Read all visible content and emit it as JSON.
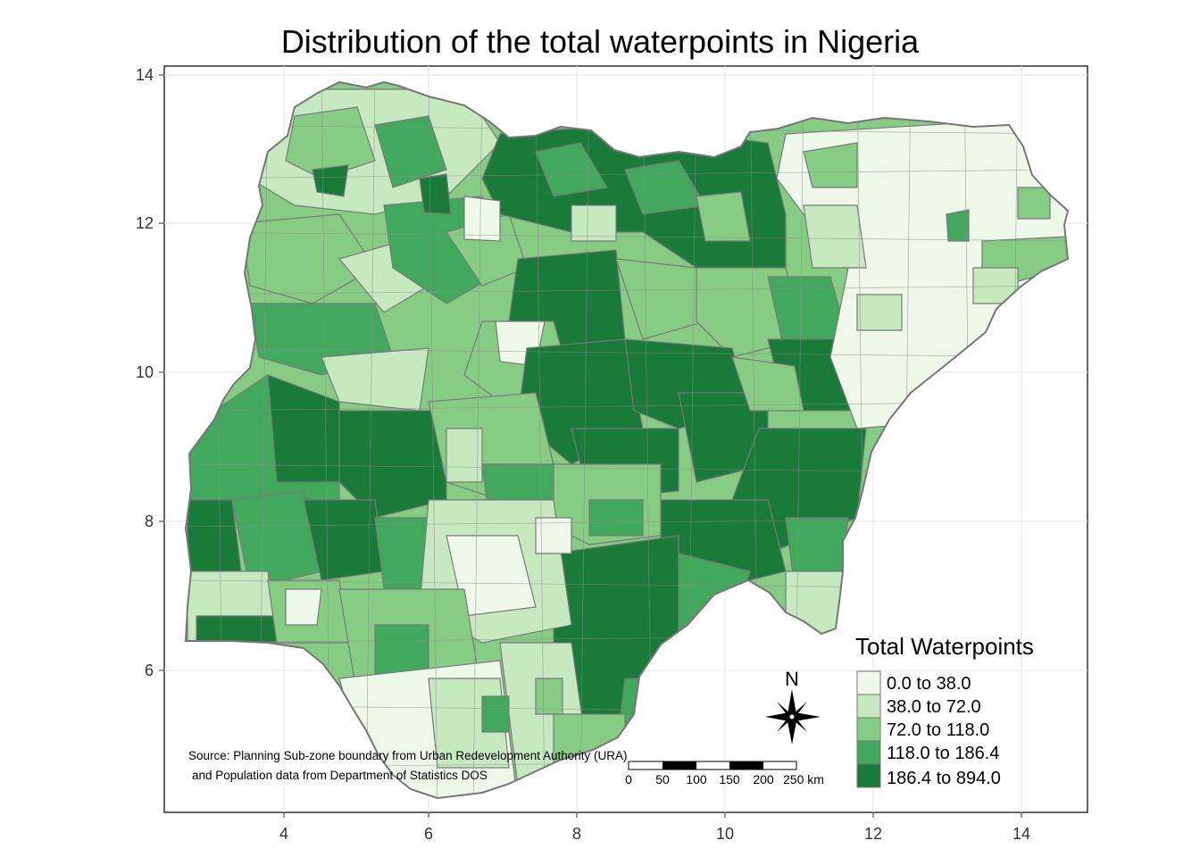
{
  "title": "Distribution of the total waterpoints in Nigeria",
  "axes": {
    "x_ticks": [
      "4",
      "6",
      "8",
      "10",
      "12",
      "14"
    ],
    "y_ticks": [
      "14",
      "12",
      "10",
      "8",
      "6"
    ]
  },
  "legend": {
    "title": "Total Waterpoints",
    "classes": [
      {
        "label": "0.0 to 38.0",
        "color": "#edf8e9"
      },
      {
        "label": "38.0 to 72.0",
        "color": "#c7e9c0"
      },
      {
        "label": "72.0 to 118.0",
        "color": "#86cc84"
      },
      {
        "label": "118.0 to 186.4",
        "color": "#41a85d"
      },
      {
        "label": "186.4 to 894.0",
        "color": "#197a3a"
      }
    ]
  },
  "north_arrow": {
    "label": "N"
  },
  "scale_bar": {
    "labels": [
      "0",
      "50",
      "100",
      "150",
      "200",
      "250 km"
    ]
  },
  "source": {
    "line1": "Source: Planning Sub-zone boundary from Urban Redevelopment Authority (URA)",
    "line2": "and Population data from Department of Statistics DOS"
  }
}
